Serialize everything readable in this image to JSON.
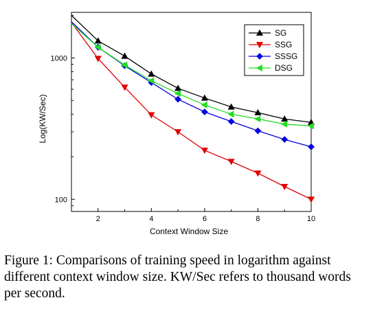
{
  "chart_data": {
    "type": "line",
    "title": "",
    "xlabel": "Context Window Size",
    "ylabel": "Log(KW/Sec)",
    "x": [
      1,
      2,
      3,
      4,
      5,
      6,
      7,
      8,
      9,
      10
    ],
    "xlim": [
      1,
      10
    ],
    "xticks": [
      2,
      4,
      6,
      8,
      10
    ],
    "yscale": "log",
    "ylim": [
      82,
      2100
    ],
    "yticks": [
      100,
      1000
    ],
    "grid": false,
    "legend_position": "top-right",
    "series": [
      {
        "name": "SG",
        "color": "#000000",
        "marker": "triangle-up",
        "values": [
          2000,
          1320,
          1030,
          770,
          610,
          520,
          450,
          410,
          370,
          350
        ]
      },
      {
        "name": "SSG",
        "color": "#e00000",
        "marker": "triangle-down",
        "values": [
          1780,
          990,
          620,
          395,
          300,
          222,
          185,
          153,
          123,
          100
        ]
      },
      {
        "name": "SSSG",
        "color": "#0000e0",
        "marker": "diamond",
        "values": [
          1800,
          1190,
          880,
          670,
          510,
          415,
          355,
          305,
          265,
          235
        ]
      },
      {
        "name": "DSG",
        "color": "#22dd22",
        "marker": "triangle-left",
        "values": [
          1750,
          1190,
          890,
          690,
          560,
          465,
          400,
          370,
          340,
          330
        ]
      }
    ]
  },
  "caption": "Figure 1: Comparisons of training speed in logarithm against different context window size. KW/Sec refers to thousand words per second."
}
